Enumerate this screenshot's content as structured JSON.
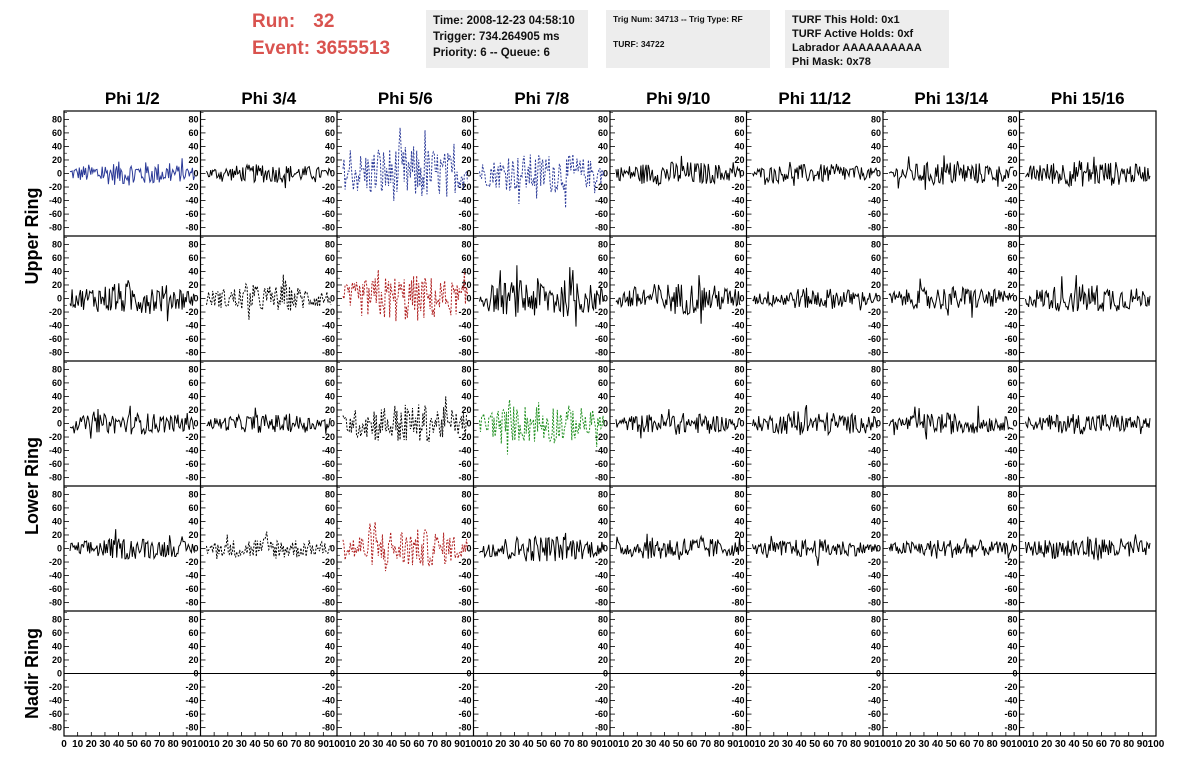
{
  "header": {
    "run_label": "Run:",
    "run_value": "32",
    "event_label": "Event:",
    "event_value": "3655513",
    "box1": {
      "time": "Time: 2008-12-23 04:58:10",
      "trigger": "Trigger: 734.264905 ms",
      "priority": "Priority: 6 -- Queue: 6"
    },
    "box2": {
      "trig": "Trig Num: 34713 -- Trig Type: RF",
      "turf": "TURF: 34722"
    },
    "box3": {
      "hold": "TURF This Hold: 0x1",
      "active": "TURF Active Holds: 0xf",
      "labrador": "Labrador AAAAAAAAAA",
      "phimask": "Phi Mask: 0x78"
    }
  },
  "chart_data": {
    "type": "line",
    "title": "",
    "columns": [
      "Phi 1/2",
      "Phi 3/4",
      "Phi 5/6",
      "Phi 7/8",
      "Phi 9/10",
      "Phi 11/12",
      "Phi 13/14",
      "Phi 15/16"
    ],
    "ring_labels": [
      "Upper Ring",
      "Lower Ring",
      "Nadir Ring"
    ],
    "rows": 5,
    "ylim": [
      -85,
      85
    ],
    "xlim": [
      0,
      100
    ],
    "yticks": [
      -80,
      -60,
      -40,
      -20,
      0,
      20,
      40,
      60,
      80
    ],
    "yticklabels": [
      "-80",
      "-60",
      "-40",
      "-20",
      "0",
      "20",
      "40",
      "60",
      "80"
    ],
    "xticklabels_first": [
      "0",
      "10",
      "20",
      "30",
      "40",
      "50",
      "60",
      "70",
      "80",
      "90",
      "100"
    ],
    "xticklabels": [
      "10",
      "20",
      "30",
      "40",
      "50",
      "60",
      "70",
      "80",
      "90",
      "100"
    ],
    "grid": false,
    "colors": {
      "normal": "#000000",
      "blue": "#2b3a98",
      "red": "#b02020",
      "green": "#1f8f1f"
    },
    "panels": [
      {
        "row": 0,
        "col": 0,
        "style": "blue",
        "dashed": false,
        "amplitude": 18
      },
      {
        "row": 0,
        "col": 1,
        "style": "normal",
        "dashed": false,
        "amplitude": 14
      },
      {
        "row": 0,
        "col": 2,
        "style": "blue",
        "dashed": true,
        "amplitude": 42
      },
      {
        "row": 0,
        "col": 3,
        "style": "blue",
        "dashed": true,
        "amplitude": 30
      },
      {
        "row": 0,
        "col": 4,
        "style": "normal",
        "dashed": false,
        "amplitude": 18
      },
      {
        "row": 0,
        "col": 5,
        "style": "normal",
        "dashed": false,
        "amplitude": 14
      },
      {
        "row": 0,
        "col": 6,
        "style": "normal",
        "dashed": false,
        "amplitude": 18
      },
      {
        "row": 0,
        "col": 7,
        "style": "normal",
        "dashed": false,
        "amplitude": 20
      },
      {
        "row": 1,
        "col": 0,
        "style": "normal",
        "dashed": false,
        "amplitude": 24
      },
      {
        "row": 1,
        "col": 1,
        "style": "normal",
        "dashed": true,
        "amplitude": 20
      },
      {
        "row": 1,
        "col": 2,
        "style": "red",
        "dashed": true,
        "amplitude": 36
      },
      {
        "row": 1,
        "col": 3,
        "style": "normal",
        "dashed": false,
        "amplitude": 30
      },
      {
        "row": 1,
        "col": 4,
        "style": "normal",
        "dashed": false,
        "amplitude": 24
      },
      {
        "row": 1,
        "col": 5,
        "style": "normal",
        "dashed": false,
        "amplitude": 16
      },
      {
        "row": 1,
        "col": 6,
        "style": "normal",
        "dashed": false,
        "amplitude": 18
      },
      {
        "row": 1,
        "col": 7,
        "style": "normal",
        "dashed": false,
        "amplitude": 22
      },
      {
        "row": 2,
        "col": 0,
        "style": "normal",
        "dashed": false,
        "amplitude": 16
      },
      {
        "row": 2,
        "col": 1,
        "style": "normal",
        "dashed": false,
        "amplitude": 14
      },
      {
        "row": 2,
        "col": 2,
        "style": "normal",
        "dashed": true,
        "amplitude": 30
      },
      {
        "row": 2,
        "col": 3,
        "style": "green",
        "dashed": true,
        "amplitude": 30
      },
      {
        "row": 2,
        "col": 4,
        "style": "normal",
        "dashed": false,
        "amplitude": 16
      },
      {
        "row": 2,
        "col": 5,
        "style": "normal",
        "dashed": false,
        "amplitude": 18
      },
      {
        "row": 2,
        "col": 6,
        "style": "normal",
        "dashed": false,
        "amplitude": 16
      },
      {
        "row": 2,
        "col": 7,
        "style": "normal",
        "dashed": false,
        "amplitude": 16
      },
      {
        "row": 3,
        "col": 0,
        "style": "normal",
        "dashed": false,
        "amplitude": 16
      },
      {
        "row": 3,
        "col": 1,
        "style": "normal",
        "dashed": true,
        "amplitude": 16
      },
      {
        "row": 3,
        "col": 2,
        "style": "red",
        "dashed": true,
        "amplitude": 30
      },
      {
        "row": 3,
        "col": 3,
        "style": "normal",
        "dashed": false,
        "amplitude": 20
      },
      {
        "row": 3,
        "col": 4,
        "style": "normal",
        "dashed": false,
        "amplitude": 18
      },
      {
        "row": 3,
        "col": 5,
        "style": "normal",
        "dashed": false,
        "amplitude": 14
      },
      {
        "row": 3,
        "col": 6,
        "style": "normal",
        "dashed": false,
        "amplitude": 14
      },
      {
        "row": 3,
        "col": 7,
        "style": "normal",
        "dashed": false,
        "amplitude": 18
      },
      {
        "row": 4,
        "col": 0,
        "style": "flat",
        "dashed": false,
        "amplitude": 0
      },
      {
        "row": 4,
        "col": 1,
        "style": "flat",
        "dashed": false,
        "amplitude": 0
      },
      {
        "row": 4,
        "col": 2,
        "style": "flat",
        "dashed": false,
        "amplitude": 0
      },
      {
        "row": 4,
        "col": 3,
        "style": "flat",
        "dashed": false,
        "amplitude": 0
      },
      {
        "row": 4,
        "col": 4,
        "style": "flat",
        "dashed": false,
        "amplitude": 0
      },
      {
        "row": 4,
        "col": 5,
        "style": "flat",
        "dashed": false,
        "amplitude": 0
      },
      {
        "row": 4,
        "col": 6,
        "style": "flat",
        "dashed": false,
        "amplitude": 0
      },
      {
        "row": 4,
        "col": 7,
        "style": "flat",
        "dashed": false,
        "amplitude": 0
      }
    ]
  }
}
